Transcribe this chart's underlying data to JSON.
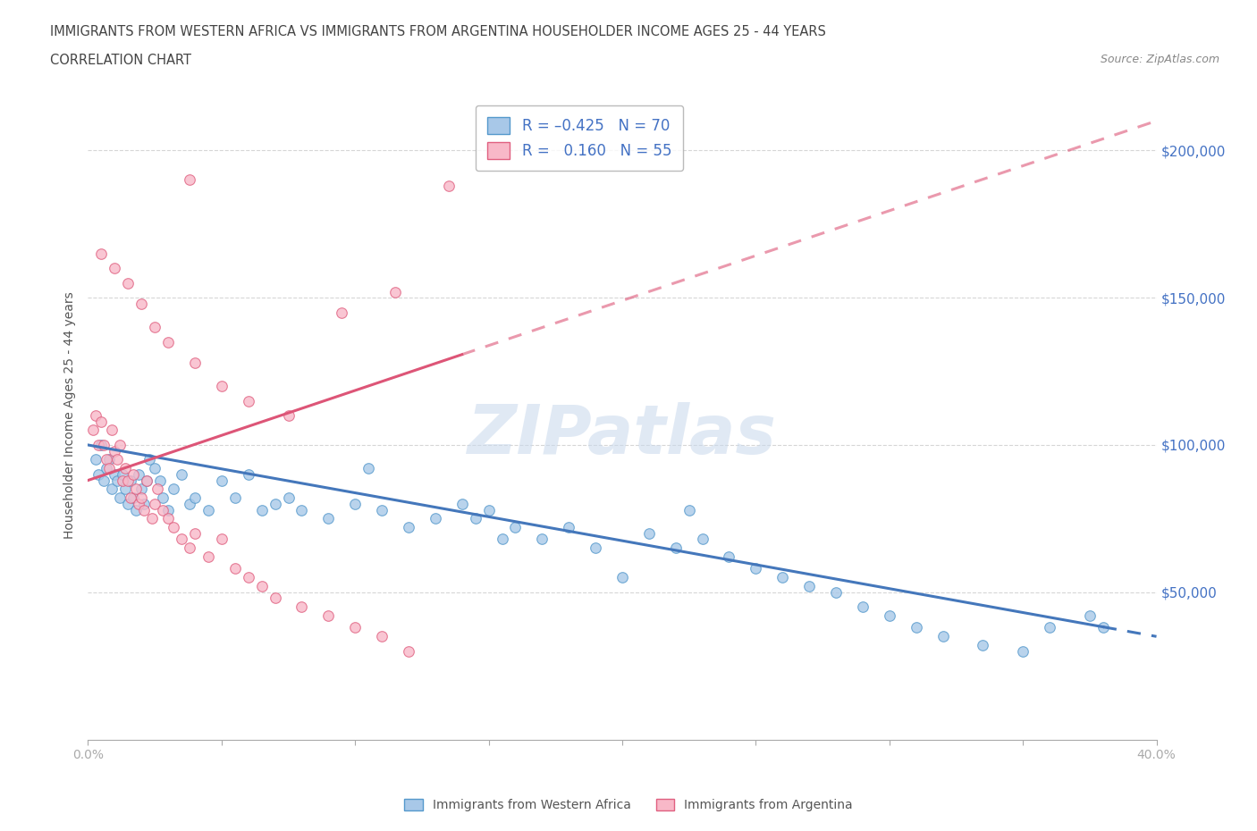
{
  "title_line1": "IMMIGRANTS FROM WESTERN AFRICA VS IMMIGRANTS FROM ARGENTINA HOUSEHOLDER INCOME AGES 25 - 44 YEARS",
  "title_line2": "CORRELATION CHART",
  "source_text": "Source: ZipAtlas.com",
  "ylabel": "Householder Income Ages 25 - 44 years",
  "watermark": "ZIPatlas",
  "legend_bottom_blue": "Immigrants from Western Africa",
  "legend_bottom_pink": "Immigrants from Argentina",
  "blue_color": "#a8c8e8",
  "blue_edge_color": "#5599cc",
  "pink_color": "#f8b8c8",
  "pink_edge_color": "#e06080",
  "blue_line_color": "#4477bb",
  "pink_line_color": "#dd5577",
  "xmin": 0.0,
  "xmax": 40.0,
  "ymin": 0,
  "ymax": 220000,
  "yticks": [
    50000,
    100000,
    150000,
    200000
  ],
  "ytick_labels": [
    "$50,000",
    "$100,000",
    "$150,000",
    "$200,000"
  ],
  "xticks": [
    0,
    5,
    10,
    15,
    20,
    25,
    30,
    35,
    40
  ],
  "blue_R": -0.425,
  "blue_N": 70,
  "pink_R": 0.16,
  "pink_N": 55,
  "blue_trend_x0": 0.0,
  "blue_trend_y0": 100000,
  "blue_trend_x1": 40.0,
  "blue_trend_y1": 35000,
  "pink_trend_x0": 0.0,
  "pink_trend_y0": 88000,
  "pink_trend_x1": 40.0,
  "pink_trend_y1": 210000,
  "blue_scatter_x": [
    0.3,
    0.4,
    0.5,
    0.6,
    0.7,
    0.8,
    0.9,
    1.0,
    1.1,
    1.2,
    1.3,
    1.4,
    1.5,
    1.6,
    1.7,
    1.8,
    1.9,
    2.0,
    2.1,
    2.2,
    2.3,
    2.5,
    2.7,
    2.8,
    3.0,
    3.2,
    3.5,
    3.8,
    4.0,
    4.5,
    5.0,
    5.5,
    6.0,
    6.5,
    7.0,
    7.5,
    8.0,
    9.0,
    10.0,
    11.0,
    12.0,
    13.0,
    14.0,
    15.0,
    16.0,
    17.0,
    18.0,
    19.0,
    20.0,
    21.0,
    22.0,
    23.0,
    24.0,
    25.0,
    26.0,
    27.0,
    28.0,
    29.0,
    30.0,
    31.0,
    32.0,
    33.5,
    35.0,
    36.0,
    37.5,
    10.5,
    14.5,
    22.5,
    38.0,
    15.5
  ],
  "blue_scatter_y": [
    95000,
    90000,
    100000,
    88000,
    92000,
    95000,
    85000,
    90000,
    88000,
    82000,
    90000,
    85000,
    80000,
    88000,
    82000,
    78000,
    90000,
    85000,
    80000,
    88000,
    95000,
    92000,
    88000,
    82000,
    78000,
    85000,
    90000,
    80000,
    82000,
    78000,
    88000,
    82000,
    90000,
    78000,
    80000,
    82000,
    78000,
    75000,
    80000,
    78000,
    72000,
    75000,
    80000,
    78000,
    72000,
    68000,
    72000,
    65000,
    55000,
    70000,
    65000,
    68000,
    62000,
    58000,
    55000,
    52000,
    50000,
    45000,
    42000,
    38000,
    35000,
    32000,
    30000,
    38000,
    42000,
    92000,
    75000,
    78000,
    38000,
    68000
  ],
  "pink_scatter_x": [
    0.2,
    0.3,
    0.4,
    0.5,
    0.6,
    0.7,
    0.8,
    0.9,
    1.0,
    1.1,
    1.2,
    1.3,
    1.4,
    1.5,
    1.6,
    1.7,
    1.8,
    1.9,
    2.0,
    2.1,
    2.2,
    2.4,
    2.5,
    2.6,
    2.8,
    3.0,
    3.2,
    3.5,
    3.8,
    4.0,
    4.5,
    5.0,
    5.5,
    6.0,
    6.5,
    7.0,
    8.0,
    9.0,
    10.0,
    11.0,
    12.0,
    0.5,
    1.0,
    1.5,
    2.0,
    2.5,
    3.0,
    4.0,
    5.0,
    6.0,
    7.5,
    9.5,
    11.5,
    13.5,
    3.8
  ],
  "pink_scatter_y": [
    105000,
    110000,
    100000,
    108000,
    100000,
    95000,
    92000,
    105000,
    98000,
    95000,
    100000,
    88000,
    92000,
    88000,
    82000,
    90000,
    85000,
    80000,
    82000,
    78000,
    88000,
    75000,
    80000,
    85000,
    78000,
    75000,
    72000,
    68000,
    65000,
    70000,
    62000,
    68000,
    58000,
    55000,
    52000,
    48000,
    45000,
    42000,
    38000,
    35000,
    30000,
    165000,
    160000,
    155000,
    148000,
    140000,
    135000,
    128000,
    120000,
    115000,
    110000,
    145000,
    152000,
    188000,
    190000
  ]
}
